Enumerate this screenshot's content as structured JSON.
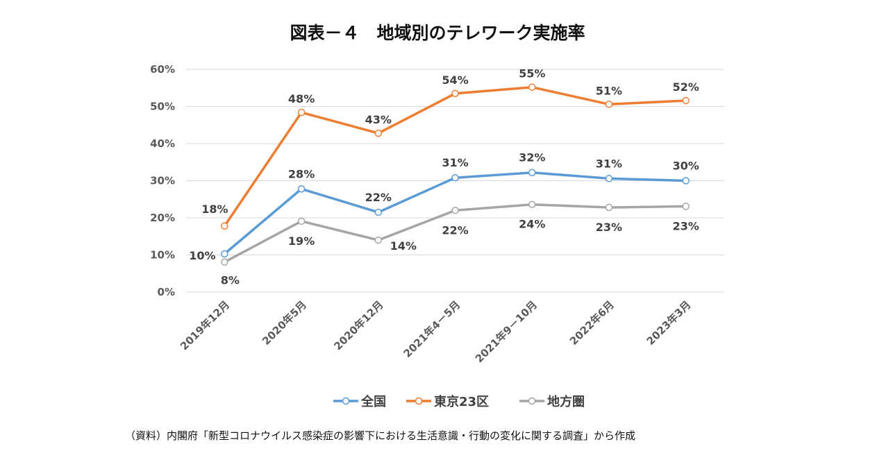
{
  "chart_data": {
    "type": "line",
    "title": "図表－４　地域別のテレワーク実施率",
    "xlabel": "",
    "ylabel": "",
    "ylim": [
      0,
      60
    ],
    "yticks": [
      "0%",
      "10%",
      "20%",
      "30%",
      "40%",
      "50%",
      "60%"
    ],
    "grid": true,
    "legend_position": "bottom",
    "categories": [
      "2019年12月",
      "2020年5月",
      "2020年12月",
      "2021年4－5月",
      "2021年9－10月",
      "2022年6月",
      "2023年3月"
    ],
    "series": [
      {
        "name": "全国",
        "color": "#5B9BD5",
        "values": [
          10.3,
          27.8,
          21.5,
          30.8,
          32.2,
          30.6,
          30.0
        ],
        "labels": [
          "10%",
          "28%",
          "22%",
          "31%",
          "32%",
          "31%",
          "30%"
        ]
      },
      {
        "name": "東京23区",
        "color": "#ED7D31",
        "values": [
          17.8,
          48.4,
          42.8,
          53.5,
          55.2,
          50.6,
          51.6
        ],
        "labels": [
          "18%",
          "48%",
          "43%",
          "54%",
          "55%",
          "51%",
          "52%"
        ]
      },
      {
        "name": "地方圏",
        "color": "#A5A5A5",
        "values": [
          8.1,
          19.1,
          14.0,
          22.0,
          23.6,
          22.8,
          23.1
        ],
        "labels": [
          "8%",
          "19%",
          "14%",
          "22%",
          "24%",
          "23%",
          "23%"
        ]
      }
    ]
  },
  "source": "（資料）内閣府「新型コロナウイルス感染症の影響下における生活意識・行動の変化に関する調査」から作成"
}
